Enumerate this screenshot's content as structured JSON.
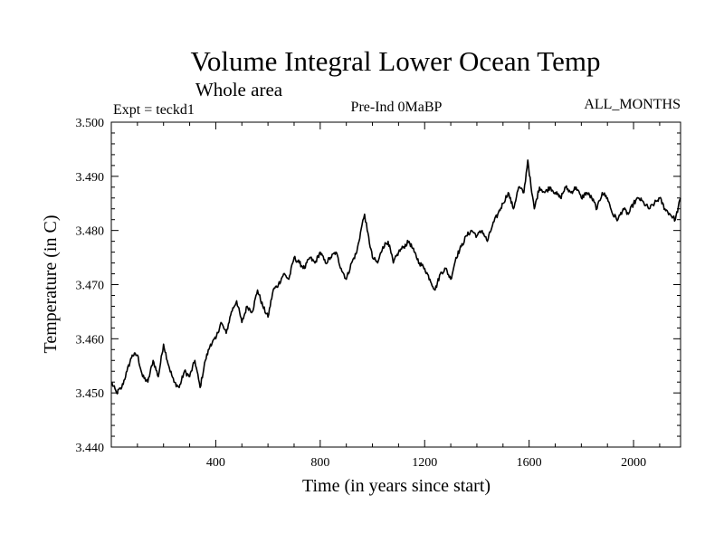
{
  "chart_data": {
    "type": "line",
    "title": "Volume Integral Lower Ocean Temp",
    "subtitle": "Whole area",
    "left_label": "Expt = teckd1",
    "center_label": "Pre-Ind 0MaBP",
    "right_label": "ALL_MONTHS",
    "xlabel": "Time (in years since start)",
    "ylabel": "Temperature (in C)",
    "xlim": [
      0,
      2180
    ],
    "ylim": [
      3.44,
      3.5
    ],
    "x_ticks": [
      400,
      800,
      1200,
      1600,
      2000
    ],
    "x_tick_labels": [
      "400",
      "800",
      "1200",
      "1600",
      "2000"
    ],
    "y_ticks": [
      3.44,
      3.45,
      3.46,
      3.47,
      3.48,
      3.49,
      3.5
    ],
    "y_tick_labels": [
      "3.440",
      "3.450",
      "3.460",
      "3.470",
      "3.480",
      "3.490",
      "3.500"
    ],
    "grid": false,
    "series": [
      {
        "name": "Volume integral lower ocean temperature",
        "color": "#000000",
        "x": [
          0,
          20,
          40,
          60,
          80,
          100,
          120,
          140,
          160,
          180,
          200,
          220,
          240,
          260,
          280,
          300,
          320,
          340,
          360,
          380,
          400,
          420,
          440,
          460,
          480,
          500,
          520,
          540,
          560,
          580,
          600,
          620,
          640,
          660,
          680,
          700,
          720,
          740,
          760,
          780,
          800,
          820,
          840,
          860,
          880,
          900,
          920,
          940,
          960,
          970,
          980,
          1000,
          1020,
          1040,
          1060,
          1080,
          1100,
          1120,
          1140,
          1160,
          1180,
          1200,
          1220,
          1240,
          1260,
          1280,
          1300,
          1320,
          1340,
          1360,
          1380,
          1400,
          1420,
          1440,
          1460,
          1480,
          1500,
          1520,
          1540,
          1560,
          1580,
          1595,
          1610,
          1620,
          1640,
          1660,
          1680,
          1700,
          1720,
          1740,
          1760,
          1780,
          1800,
          1820,
          1840,
          1860,
          1880,
          1900,
          1920,
          1940,
          1960,
          1980,
          2000,
          2020,
          2040,
          2060,
          2080,
          2100,
          2120,
          2140,
          2160,
          2180
        ],
        "values": [
          3.452,
          3.45,
          3.451,
          3.454,
          3.457,
          3.457,
          3.453,
          3.452,
          3.456,
          3.453,
          3.459,
          3.455,
          3.452,
          3.451,
          3.454,
          3.453,
          3.456,
          3.451,
          3.456,
          3.459,
          3.46,
          3.463,
          3.461,
          3.465,
          3.467,
          3.463,
          3.466,
          3.465,
          3.469,
          3.466,
          3.464,
          3.469,
          3.47,
          3.472,
          3.471,
          3.475,
          3.474,
          3.473,
          3.475,
          3.474,
          3.476,
          3.474,
          3.475,
          3.476,
          3.473,
          3.471,
          3.474,
          3.476,
          3.481,
          3.483,
          3.48,
          3.475,
          3.474,
          3.477,
          3.478,
          3.474,
          3.476,
          3.477,
          3.478,
          3.476,
          3.474,
          3.473,
          3.471,
          3.469,
          3.472,
          3.473,
          3.471,
          3.475,
          3.477,
          3.479,
          3.48,
          3.479,
          3.48,
          3.478,
          3.481,
          3.483,
          3.485,
          3.487,
          3.484,
          3.488,
          3.487,
          3.493,
          3.487,
          3.484,
          3.488,
          3.487,
          3.488,
          3.487,
          3.486,
          3.488,
          3.487,
          3.488,
          3.486,
          3.487,
          3.486,
          3.484,
          3.487,
          3.486,
          3.483,
          3.482,
          3.484,
          3.483,
          3.485,
          3.486,
          3.485,
          3.484,
          3.485,
          3.486,
          3.484,
          3.483,
          3.482,
          3.486
        ]
      }
    ]
  }
}
